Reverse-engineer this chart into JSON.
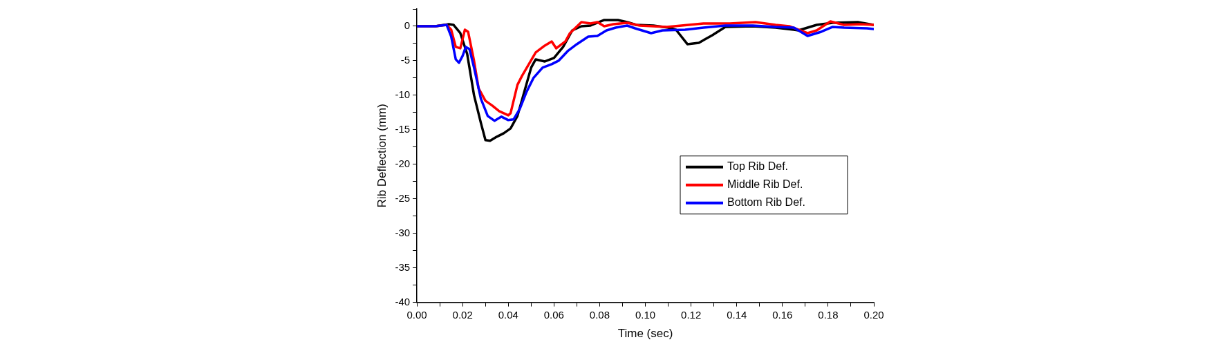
{
  "chart_data": {
    "type": "line",
    "xlabel": "Time (sec)",
    "ylabel": "Rib Deflection (mm)",
    "xlim": [
      0,
      0.2
    ],
    "ylim": [
      -40,
      2.5
    ],
    "xticks": [
      {
        "value": 0,
        "label": "0.00"
      },
      {
        "value": 0.01,
        "label": null
      },
      {
        "value": 0.02,
        "label": "0.02"
      },
      {
        "value": 0.03,
        "label": null
      },
      {
        "value": 0.04,
        "label": "0.04"
      },
      {
        "value": 0.05,
        "label": null
      },
      {
        "value": 0.06,
        "label": "0.06"
      },
      {
        "value": 0.07,
        "label": null
      },
      {
        "value": 0.08,
        "label": "0.08"
      },
      {
        "value": 0.09,
        "label": null
      },
      {
        "value": 0.1,
        "label": "0.10"
      },
      {
        "value": 0.11,
        "label": null
      },
      {
        "value": 0.12,
        "label": "0.12"
      },
      {
        "value": 0.13,
        "label": null
      },
      {
        "value": 0.14,
        "label": "0.14"
      },
      {
        "value": 0.15,
        "label": null
      },
      {
        "value": 0.16,
        "label": "0.16"
      },
      {
        "value": 0.17,
        "label": null
      },
      {
        "value": 0.18,
        "label": "0.18"
      },
      {
        "value": 0.19,
        "label": null
      },
      {
        "value": 0.2,
        "label": "0.20"
      }
    ],
    "yticks": [
      -40,
      {
        "value": -37.5,
        "label": null
      },
      -35,
      {
        "value": -32.5,
        "label": null
      },
      -30,
      {
        "value": -27.5,
        "label": null
      },
      -25,
      {
        "value": -22.5,
        "label": null
      },
      -20,
      {
        "value": -17.5,
        "label": null
      },
      -15,
      {
        "value": -12.5,
        "label": null
      },
      -10,
      {
        "value": -7.5,
        "label": null
      },
      -5,
      {
        "value": -2.5,
        "label": null
      },
      0,
      {
        "value": 2.5,
        "label": null
      }
    ],
    "grid": false,
    "legend": "right",
    "marker": "none",
    "line_style": "solid",
    "series": [
      {
        "name": "Top Rib Def.",
        "color": "#000000",
        "x": [
          0,
          0.008,
          0.014,
          0.016,
          0.019,
          0.022,
          0.025,
          0.028,
          0.03,
          0.032,
          0.035,
          0.038,
          0.041,
          0.044,
          0.047,
          0.05,
          0.052,
          0.056,
          0.06,
          0.064,
          0.068,
          0.072,
          0.076,
          0.082,
          0.088,
          0.092,
          0.096,
          0.1035,
          0.11,
          0.1134,
          0.1184,
          0.1234,
          0.1293,
          0.135,
          0.147,
          0.157,
          0.165,
          0.167,
          0.175,
          0.182,
          0.193,
          0.2
        ],
        "values": [
          0,
          0,
          0.3,
          0.2,
          -1,
          -4,
          -10,
          -14,
          -16.5,
          -16.6,
          -16,
          -15.5,
          -14.8,
          -13,
          -9.5,
          -6,
          -4.8,
          -5.1,
          -4.6,
          -3,
          -0.6,
          0,
          0.1,
          0.9,
          0.9,
          0.6,
          0.2,
          0.1,
          -0.2,
          -0.5,
          -2.6,
          -2.4,
          -1.3,
          -0.1,
          0,
          -0.2,
          -0.5,
          -0.6,
          0.2,
          0.5,
          0.6,
          0.2
        ]
      },
      {
        "name": "Middle Rib Def.",
        "color": "#ff0000",
        "x": [
          0,
          0.008,
          0.013,
          0.015,
          0.017,
          0.019,
          0.021,
          0.0224,
          0.025,
          0.027,
          0.03,
          0.033,
          0.036,
          0.04,
          0.041,
          0.044,
          0.046,
          0.049,
          0.052,
          0.056,
          0.059,
          0.061,
          0.065,
          0.067,
          0.072,
          0.076,
          0.079,
          0.082,
          0.086,
          0.092,
          0.0975,
          0.1094,
          0.1254,
          0.137,
          0.1482,
          0.157,
          0.163,
          0.171,
          0.175,
          0.181,
          0.187,
          0.194,
          0.2
        ],
        "values": [
          0,
          0,
          0.2,
          -0.5,
          -3,
          -3.2,
          -0.5,
          -0.8,
          -5,
          -9,
          -10.8,
          -11.5,
          -12.3,
          -12.9,
          -12.6,
          -8.5,
          -7.2,
          -5.5,
          -3.8,
          -2.8,
          -2.2,
          -3.2,
          -2.2,
          -1,
          0.6,
          0.4,
          0.6,
          0,
          0.3,
          0.5,
          0.1,
          -0.1,
          0.4,
          0.4,
          0.6,
          0.2,
          0,
          -1,
          -0.6,
          0.7,
          0.2,
          0.3,
          0.2
        ]
      },
      {
        "name": "Bottom Rib Def.",
        "color": "#0000ff",
        "x": [
          0,
          0.008,
          0.013,
          0.015,
          0.017,
          0.0184,
          0.02,
          0.0214,
          0.023,
          0.025,
          0.028,
          0.031,
          0.034,
          0.037,
          0.04,
          0.0423,
          0.045,
          0.048,
          0.051,
          0.055,
          0.059,
          0.062,
          0.066,
          0.07,
          0.075,
          0.079,
          0.083,
          0.087,
          0.092,
          0.0955,
          0.1025,
          0.1075,
          0.1174,
          0.1254,
          0.135,
          0.147,
          0.157,
          0.165,
          0.171,
          0.177,
          0.182,
          0.187,
          0.197,
          0.2
        ],
        "values": [
          0,
          0,
          0.2,
          -1.5,
          -4.8,
          -5.3,
          -4.3,
          -3,
          -3.3,
          -6,
          -10.5,
          -13,
          -13.7,
          -13.1,
          -13.6,
          -13.5,
          -12,
          -9.5,
          -7.5,
          -6,
          -5.5,
          -5,
          -3.6,
          -2.6,
          -1.5,
          -1.4,
          -0.6,
          -0.2,
          0.1,
          -0.3,
          -1,
          -0.6,
          -0.5,
          -0.2,
          0.1,
          0.1,
          -0.1,
          -0.2,
          -1.4,
          -0.8,
          -0.1,
          -0.2,
          -0.3,
          -0.4
        ]
      }
    ]
  }
}
